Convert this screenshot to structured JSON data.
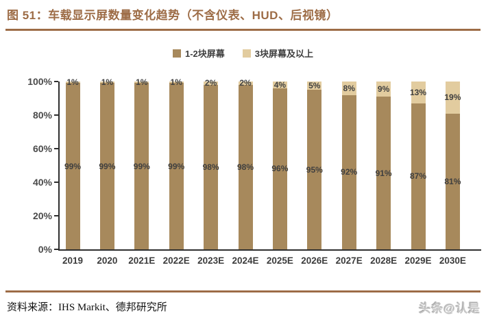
{
  "page": {
    "title": "图 51：车载显示屏数量变化趋势（不含仪表、HUD、后视镜）",
    "source_label": "资料来源：IHS Markit、德邦研究所",
    "watermark": "头条@认是"
  },
  "colors": {
    "title_brown": "#9D6C46",
    "divider_brown": "#9D6C46",
    "bar_dark_brown": "#A7895C",
    "bar_light_tan": "#E2CC9F",
    "axis": "#2e2e2e",
    "label_gray": "#3f3f3f",
    "watermark_gray": "#c6c6c6"
  },
  "chart_data": {
    "type": "bar",
    "stacked": true,
    "title": "车载显示屏数量变化趋势（不含仪表、HUD、后视镜）",
    "categories": [
      "2019",
      "2020",
      "2021E",
      "2022E",
      "2023E",
      "2024E",
      "2025E",
      "2026E",
      "2027E",
      "2028E",
      "2029E",
      "2030E"
    ],
    "series": [
      {
        "name": "1-2块屏幕",
        "color": "#A7895C",
        "values": [
          99,
          99,
          99,
          99,
          98,
          98,
          96,
          95,
          92,
          91,
          87,
          81
        ]
      },
      {
        "name": "3块屏幕及以上",
        "color": "#E2CC9F",
        "values": [
          1,
          1,
          1,
          1,
          2,
          2,
          4,
          5,
          8,
          9,
          13,
          19
        ]
      }
    ],
    "y_ticks": [
      "0%",
      "20%",
      "40%",
      "60%",
      "80%",
      "100%"
    ],
    "ylim": [
      0,
      100
    ],
    "xlabel": "",
    "ylabel": "",
    "legend_position": "top",
    "grid": false,
    "data_labels": true
  }
}
